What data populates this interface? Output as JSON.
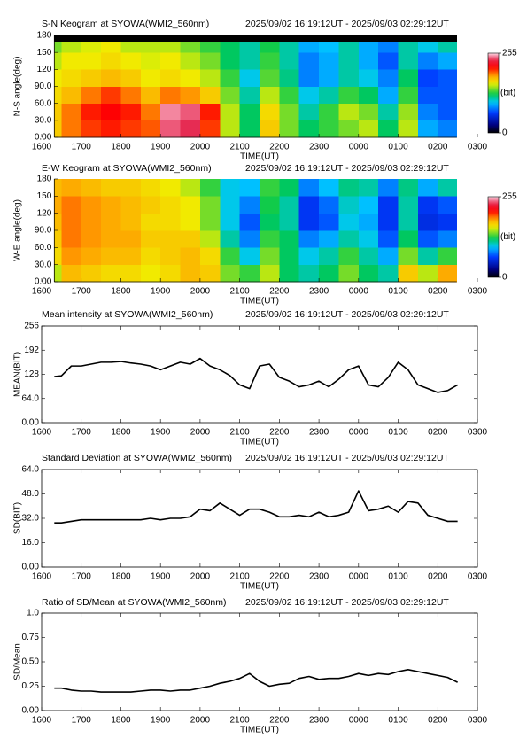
{
  "chart_data": [
    {
      "type": "heatmap",
      "title": "S-N Keogram at SYOWA(WMI2_560nm)",
      "subtitle": "2025/09/02 16:19:12UT - 2025/09/03 02:29:12UT",
      "xlabel": "TIME(UT)",
      "ylabel": "N-S angle(deg)",
      "xlim": [
        16,
        27
      ],
      "xticks": [
        {
          "value": 16,
          "label": "1600"
        },
        {
          "value": 17,
          "label": "1700"
        },
        {
          "value": 18,
          "label": "1800"
        },
        {
          "value": 19,
          "label": "1900"
        },
        {
          "value": 20,
          "label": "2000"
        },
        {
          "value": 21,
          "label": "2100"
        },
        {
          "value": 22,
          "label": "2200"
        },
        {
          "value": 23,
          "label": "2300"
        },
        {
          "value": 24,
          "label": "0000"
        },
        {
          "value": 25,
          "label": "0100"
        },
        {
          "value": 26,
          "label": "0200"
        },
        {
          "value": 27,
          "label": "0300"
        }
      ],
      "ylim": [
        0,
        180
      ],
      "yticks": [
        {
          "value": 0,
          "label": "0.00"
        },
        {
          "value": 30,
          "label": "30.0"
        },
        {
          "value": 60,
          "label": "60.0"
        },
        {
          "value": 90,
          "label": "90.0"
        },
        120,
        150,
        180
      ],
      "zlim": [
        0,
        255
      ],
      "zticks": [
        0,
        255
      ],
      "zlabel": "(bit)",
      "xbins": [
        16.32,
        16.5,
        17,
        17.5,
        18,
        18.5,
        19,
        19.5,
        20,
        20.5,
        21,
        21.5,
        22,
        22.5,
        23,
        23.5,
        24,
        24.5,
        25,
        25.5,
        26,
        26.48
      ],
      "ybins": [
        0,
        30,
        60,
        90,
        120,
        150,
        170,
        180
      ],
      "values": [
        [
          170,
          190,
          200,
          205,
          200,
          195,
          240,
          235,
          200,
          150,
          120,
          170,
          140,
          120,
          130,
          140,
          150,
          120,
          150,
          90,
          80
        ],
        [
          170,
          190,
          205,
          210,
          205,
          190,
          245,
          240,
          205,
          150,
          120,
          165,
          140,
          110,
          130,
          150,
          140,
          110,
          145,
          80,
          70
        ],
        [
          165,
          175,
          190,
          200,
          190,
          175,
          190,
          185,
          170,
          140,
          110,
          150,
          130,
          100,
          110,
          130,
          120,
          90,
          130,
          70,
          70
        ],
        [
          160,
          165,
          170,
          175,
          170,
          160,
          165,
          160,
          150,
          130,
          100,
          135,
          115,
          80,
          90,
          110,
          100,
          80,
          120,
          65,
          70
        ],
        [
          150,
          160,
          160,
          165,
          160,
          155,
          160,
          150,
          140,
          120,
          110,
          130,
          110,
          80,
          90,
          110,
          90,
          70,
          110,
          80,
          90
        ],
        [
          140,
          150,
          155,
          160,
          150,
          150,
          150,
          140,
          130,
          120,
          110,
          125,
          110,
          90,
          95,
          110,
          90,
          80,
          110,
          100,
          110
        ],
        [
          0,
          0,
          0,
          0,
          0,
          0,
          0,
          0,
          0,
          0,
          0,
          0,
          0,
          0,
          0,
          0,
          0,
          0,
          0,
          0,
          0
        ]
      ]
    },
    {
      "type": "heatmap",
      "title": "E-W Keogram at SYOWA(WMI2_560nm)",
      "subtitle": "2025/09/02 16:19:12UT - 2025/09/03 02:29:12UT",
      "xlabel": "TIME(UT)",
      "ylabel": "W-E angle(deg)",
      "xlim": [
        16,
        27
      ],
      "xticks": [
        {
          "value": 16,
          "label": "1600"
        },
        {
          "value": 17,
          "label": "1700"
        },
        {
          "value": 18,
          "label": "1800"
        },
        {
          "value": 19,
          "label": "1900"
        },
        {
          "value": 20,
          "label": "2000"
        },
        {
          "value": 21,
          "label": "2100"
        },
        {
          "value": 22,
          "label": "2200"
        },
        {
          "value": 23,
          "label": "2300"
        },
        {
          "value": 24,
          "label": "0000"
        },
        {
          "value": 25,
          "label": "0100"
        },
        {
          "value": 26,
          "label": "0200"
        },
        {
          "value": 27,
          "label": "0300"
        }
      ],
      "ylim": [
        0,
        180
      ],
      "yticks": [
        {
          "value": 0,
          "label": "0.00"
        },
        {
          "value": 30,
          "label": "30.0"
        },
        {
          "value": 60,
          "label": "60.0"
        },
        {
          "value": 90,
          "label": "90.0"
        },
        120,
        150,
        180
      ],
      "zlim": [
        0,
        255
      ],
      "zticks": [
        0,
        255
      ],
      "zlabel": "(bit)",
      "xbins": [
        16.32,
        16.5,
        17,
        17.5,
        18,
        18.5,
        19,
        19.5,
        20,
        20.5,
        21,
        21.5,
        22,
        22.5,
        23,
        23.5,
        24,
        24.5,
        25,
        25.5,
        26,
        26.48
      ],
      "ybins": [
        0,
        30,
        60,
        90,
        120,
        150,
        180
      ],
      "values": [
        [
          150,
          175,
          170,
          165,
          165,
          160,
          165,
          175,
          170,
          140,
          130,
          150,
          120,
          110,
          120,
          140,
          120,
          110,
          170,
          150,
          180
        ],
        [
          165,
          185,
          180,
          175,
          175,
          165,
          170,
          175,
          165,
          130,
          100,
          140,
          120,
          100,
          110,
          130,
          110,
          90,
          140,
          110,
          130
        ],
        [
          170,
          190,
          185,
          180,
          180,
          170,
          170,
          170,
          150,
          110,
          80,
          130,
          120,
          80,
          90,
          110,
          100,
          70,
          120,
          70,
          80
        ],
        [
          175,
          190,
          185,
          180,
          175,
          165,
          165,
          160,
          140,
          100,
          70,
          120,
          110,
          60,
          70,
          100,
          90,
          60,
          110,
          55,
          60
        ],
        [
          180,
          190,
          185,
          180,
          175,
          170,
          165,
          160,
          140,
          100,
          80,
          125,
          110,
          60,
          75,
          105,
          95,
          60,
          110,
          60,
          70
        ],
        [
          175,
          180,
          175,
          170,
          170,
          165,
          160,
          150,
          130,
          100,
          95,
          130,
          120,
          80,
          95,
          115,
          110,
          80,
          115,
          90,
          110
        ]
      ]
    },
    {
      "type": "line",
      "title": "Mean intensity at SYOWA(WMI2_560nm)",
      "subtitle": "2025/09/02 16:19:12UT - 2025/09/03 02:29:12UT",
      "xlabel": "TIME(UT)",
      "ylabel": "MEAN(BIT)",
      "color": "#000000",
      "xlim": [
        16,
        27
      ],
      "xticks": [
        {
          "value": 16,
          "label": "1600"
        },
        {
          "value": 17,
          "label": "1700"
        },
        {
          "value": 18,
          "label": "1800"
        },
        {
          "value": 19,
          "label": "1900"
        },
        {
          "value": 20,
          "label": "2000"
        },
        {
          "value": 21,
          "label": "2100"
        },
        {
          "value": 22,
          "label": "2200"
        },
        {
          "value": 23,
          "label": "2300"
        },
        {
          "value": 24,
          "label": "0000"
        },
        {
          "value": 25,
          "label": "0100"
        },
        {
          "value": 26,
          "label": "0200"
        },
        {
          "value": 27,
          "label": "0300"
        }
      ],
      "ylim": [
        0,
        256
      ],
      "yticks": [
        {
          "value": 0,
          "label": "0.00"
        },
        {
          "value": 64,
          "label": "64.0"
        },
        128,
        192,
        256
      ],
      "x": [
        16.32,
        16.5,
        16.75,
        17,
        17.25,
        17.5,
        17.75,
        18,
        18.25,
        18.5,
        18.75,
        19,
        19.25,
        19.5,
        19.75,
        20,
        20.25,
        20.5,
        20.75,
        21,
        21.25,
        21.5,
        21.75,
        22,
        22.25,
        22.5,
        22.75,
        23,
        23.25,
        23.5,
        23.75,
        24,
        24.25,
        24.5,
        24.75,
        25,
        25.25,
        25.5,
        25.75,
        26,
        26.25,
        26.5
      ],
      "values": [
        122,
        124,
        150,
        150,
        155,
        160,
        160,
        162,
        158,
        155,
        150,
        140,
        150,
        160,
        155,
        170,
        150,
        140,
        125,
        100,
        90,
        150,
        155,
        120,
        110,
        95,
        100,
        110,
        95,
        115,
        140,
        150,
        100,
        95,
        120,
        160,
        140,
        100,
        90,
        80,
        85,
        100
      ]
    },
    {
      "type": "line",
      "title": "Standard Deviation at SYOWA(WMI2_560nm)",
      "subtitle": "2025/09/02 16:19:12UT - 2025/09/03 02:29:12UT",
      "xlabel": "TIME(UT)",
      "ylabel": "SD(BIT)",
      "color": "#000000",
      "xlim": [
        16,
        27
      ],
      "xticks": [
        {
          "value": 16,
          "label": "1600"
        },
        {
          "value": 17,
          "label": "1700"
        },
        {
          "value": 18,
          "label": "1800"
        },
        {
          "value": 19,
          "label": "1900"
        },
        {
          "value": 20,
          "label": "2000"
        },
        {
          "value": 21,
          "label": "2100"
        },
        {
          "value": 22,
          "label": "2200"
        },
        {
          "value": 23,
          "label": "2300"
        },
        {
          "value": 24,
          "label": "0000"
        },
        {
          "value": 25,
          "label": "0100"
        },
        {
          "value": 26,
          "label": "0200"
        },
        {
          "value": 27,
          "label": "0300"
        }
      ],
      "ylim": [
        0,
        64
      ],
      "yticks": [
        {
          "value": 0,
          "label": "0.00"
        },
        {
          "value": 16,
          "label": "16.0"
        },
        {
          "value": 32,
          "label": "32.0"
        },
        {
          "value": 48,
          "label": "48.0"
        },
        {
          "value": 64,
          "label": "64.0"
        }
      ],
      "x": [
        16.32,
        16.5,
        16.75,
        17,
        17.25,
        17.5,
        17.75,
        18,
        18.25,
        18.5,
        18.75,
        19,
        19.25,
        19.5,
        19.75,
        20,
        20.25,
        20.5,
        20.75,
        21,
        21.25,
        21.5,
        21.75,
        22,
        22.25,
        22.5,
        22.75,
        23,
        23.25,
        23.5,
        23.75,
        24,
        24.25,
        24.5,
        24.75,
        25,
        25.25,
        25.5,
        25.75,
        26,
        26.25,
        26.5
      ],
      "values": [
        29,
        29,
        30,
        31,
        31,
        31,
        31,
        31,
        31,
        31,
        32,
        31,
        32,
        32,
        33,
        38,
        37,
        42,
        38,
        34,
        38,
        38,
        36,
        33,
        33,
        34,
        33,
        36,
        33,
        34,
        36,
        50,
        37,
        38,
        40,
        36,
        43,
        42,
        34,
        32,
        30,
        30
      ]
    },
    {
      "type": "line",
      "title": "Ratio of SD/Mean at SYOWA(WMI2_560nm)",
      "subtitle": "2025/09/02 16:19:12UT - 2025/09/03 02:29:12UT",
      "xlabel": "TIME(UT)",
      "ylabel": "SD/Mean",
      "color": "#000000",
      "xlim": [
        16,
        27
      ],
      "xticks": [
        {
          "value": 16,
          "label": "1600"
        },
        {
          "value": 17,
          "label": "1700"
        },
        {
          "value": 18,
          "label": "1800"
        },
        {
          "value": 19,
          "label": "1900"
        },
        {
          "value": 20,
          "label": "2000"
        },
        {
          "value": 21,
          "label": "2100"
        },
        {
          "value": 22,
          "label": "2200"
        },
        {
          "value": 23,
          "label": "2300"
        },
        {
          "value": 24,
          "label": "0000"
        },
        {
          "value": 25,
          "label": "0100"
        },
        {
          "value": 26,
          "label": "0200"
        },
        {
          "value": 27,
          "label": "0300"
        }
      ],
      "ylim": [
        0,
        1
      ],
      "yticks": [
        {
          "value": 0,
          "label": "0.00"
        },
        0.25,
        {
          "value": 0.5,
          "label": "0.50"
        },
        0.75,
        {
          "value": 1,
          "label": "1.0"
        }
      ],
      "x": [
        16.32,
        16.5,
        16.75,
        17,
        17.25,
        17.5,
        17.75,
        18,
        18.25,
        18.5,
        18.75,
        19,
        19.25,
        19.5,
        19.75,
        20,
        20.25,
        20.5,
        20.75,
        21,
        21.25,
        21.5,
        21.75,
        22,
        22.25,
        22.5,
        22.75,
        23,
        23.25,
        23.5,
        23.75,
        24,
        24.25,
        24.5,
        24.75,
        25,
        25.25,
        25.5,
        25.75,
        26,
        26.25,
        26.5
      ],
      "values": [
        0.23,
        0.23,
        0.21,
        0.2,
        0.2,
        0.19,
        0.19,
        0.19,
        0.19,
        0.2,
        0.21,
        0.21,
        0.2,
        0.21,
        0.21,
        0.23,
        0.25,
        0.28,
        0.3,
        0.33,
        0.38,
        0.3,
        0.25,
        0.27,
        0.28,
        0.33,
        0.35,
        0.32,
        0.33,
        0.33,
        0.35,
        0.38,
        0.36,
        0.38,
        0.37,
        0.4,
        0.42,
        0.4,
        0.38,
        0.36,
        0.34,
        0.29
      ]
    }
  ]
}
